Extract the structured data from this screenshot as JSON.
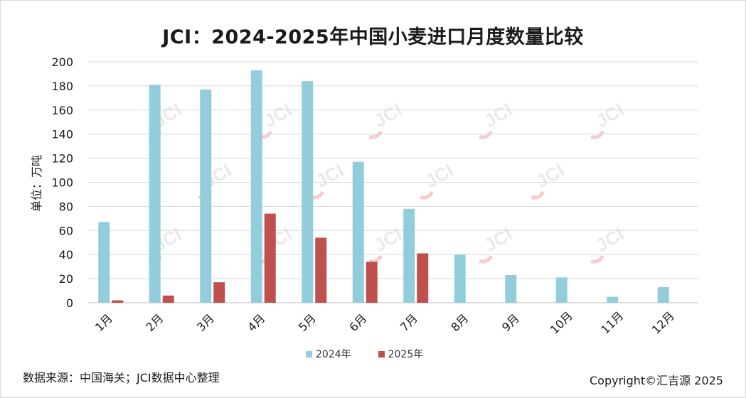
{
  "header": {
    "title": "JCI：2024-2025年中国小麦进口月度数量比较"
  },
  "chart_data": {
    "type": "bar",
    "title": "JCI：2024-2025年中国小麦进口月度数量比较",
    "xlabel": "",
    "ylabel": "单位：万吨",
    "ylim": [
      0,
      200
    ],
    "yticks": [
      0,
      20,
      40,
      60,
      80,
      100,
      120,
      140,
      160,
      180,
      200
    ],
    "categories": [
      "1月",
      "2月",
      "3月",
      "4月",
      "5月",
      "6月",
      "7月",
      "8月",
      "9月",
      "10月",
      "11月",
      "12月"
    ],
    "series": [
      {
        "name": "2024年",
        "color": "#92cddc",
        "values": [
          67,
          181,
          177,
          193,
          184,
          117,
          78,
          40,
          23,
          21,
          5,
          13
        ]
      },
      {
        "name": "2025年",
        "color": "#c0504d",
        "values": [
          2,
          6,
          17,
          74,
          54,
          34,
          41,
          null,
          null,
          null,
          null,
          null
        ]
      }
    ],
    "grid": true,
    "legend": "bottom",
    "watermark": "JCI"
  },
  "footer": {
    "source": "数据来源：中国海关；JCI数据中心整理",
    "copyright": "Copyright©汇吉源 2025"
  }
}
